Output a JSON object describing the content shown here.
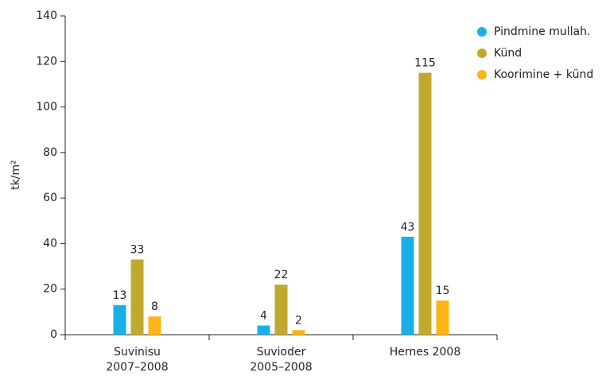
{
  "chart_data": {
    "type": "bar",
    "categories": [
      [
        "Suvinisu",
        "2007–2008"
      ],
      [
        "Suvioder",
        "2005–2008"
      ],
      [
        "Hernes 2008"
      ]
    ],
    "y_label": "tk/m²",
    "series": [
      {
        "name": "Pindmine mullah.",
        "color": "#1aafe6",
        "values": [
          13,
          4,
          43
        ]
      },
      {
        "name": "Künd",
        "color": "#bfa92f",
        "values": [
          33,
          22,
          115
        ]
      },
      {
        "name": "Koorimine + künd",
        "color": "#fbb515",
        "values": [
          8,
          2,
          15
        ]
      }
    ],
    "ylim": [
      0,
      140
    ],
    "yticks": [
      0,
      20,
      40,
      60,
      80,
      100,
      120,
      140
    ],
    "grid": false,
    "legend": "top-right"
  }
}
